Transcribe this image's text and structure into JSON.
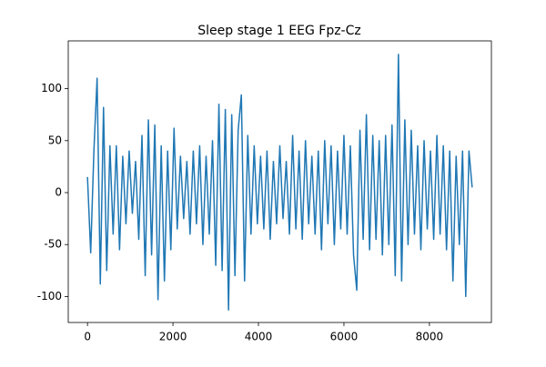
{
  "chart_data": {
    "type": "line",
    "title": "Sleep stage 1 EEG Fpz-Cz",
    "color": "#1f77b4",
    "x": [
      0,
      75,
      150,
      225,
      300,
      375,
      450,
      525,
      600,
      675,
      750,
      825,
      900,
      975,
      1050,
      1125,
      1200,
      1275,
      1350,
      1425,
      1500,
      1575,
      1650,
      1725,
      1800,
      1875,
      1950,
      2025,
      2100,
      2175,
      2250,
      2325,
      2400,
      2475,
      2550,
      2625,
      2700,
      2775,
      2850,
      2925,
      3000,
      3075,
      3150,
      3225,
      3300,
      3375,
      3450,
      3525,
      3600,
      3675,
      3750,
      3825,
      3900,
      3975,
      4050,
      4125,
      4200,
      4275,
      4350,
      4425,
      4500,
      4575,
      4650,
      4725,
      4800,
      4875,
      4950,
      5025,
      5100,
      5175,
      5250,
      5325,
      5400,
      5475,
      5550,
      5625,
      5700,
      5775,
      5850,
      5925,
      6000,
      6075,
      6150,
      6225,
      6300,
      6375,
      6450,
      6525,
      6600,
      6675,
      6750,
      6825,
      6900,
      6975,
      7050,
      7125,
      7200,
      7275,
      7350,
      7425,
      7500,
      7575,
      7650,
      7725,
      7800,
      7875,
      7950,
      8025,
      8100,
      8175,
      8250,
      8325,
      8400,
      8475,
      8550,
      8625,
      8700,
      8775,
      8850,
      8925,
      9000
    ],
    "values": [
      15,
      -58,
      40,
      110,
      -88,
      82,
      -75,
      45,
      -40,
      45,
      -55,
      35,
      -30,
      40,
      -20,
      30,
      -45,
      55,
      -80,
      70,
      -60,
      65,
      -103,
      45,
      -85,
      40,
      -55,
      62,
      -35,
      35,
      -25,
      30,
      -40,
      40,
      -30,
      45,
      -50,
      35,
      -40,
      50,
      -70,
      85,
      -75,
      80,
      -113,
      75,
      -80,
      60,
      94,
      -85,
      55,
      -40,
      45,
      -30,
      35,
      -35,
      40,
      -45,
      30,
      -30,
      45,
      -25,
      30,
      -40,
      55,
      -35,
      40,
      -45,
      50,
      -30,
      35,
      -40,
      40,
      -55,
      50,
      -30,
      45,
      -50,
      40,
      -35,
      55,
      -40,
      45,
      -60,
      -94,
      60,
      -45,
      75,
      -55,
      55,
      -45,
      50,
      -60,
      55,
      -50,
      65,
      -80,
      133,
      -85,
      70,
      -50,
      60,
      -40,
      45,
      -55,
      50,
      -35,
      40,
      -45,
      55,
      -40,
      45,
      -55,
      40,
      -85,
      35,
      -50,
      40,
      -100,
      40,
      5
    ],
    "xlim": [
      -450,
      9450
    ],
    "ylim": [
      -125,
      146
    ],
    "xticks": [
      0,
      2000,
      4000,
      6000,
      8000
    ],
    "yticks": [
      -100,
      -50,
      0,
      50,
      100
    ]
  }
}
